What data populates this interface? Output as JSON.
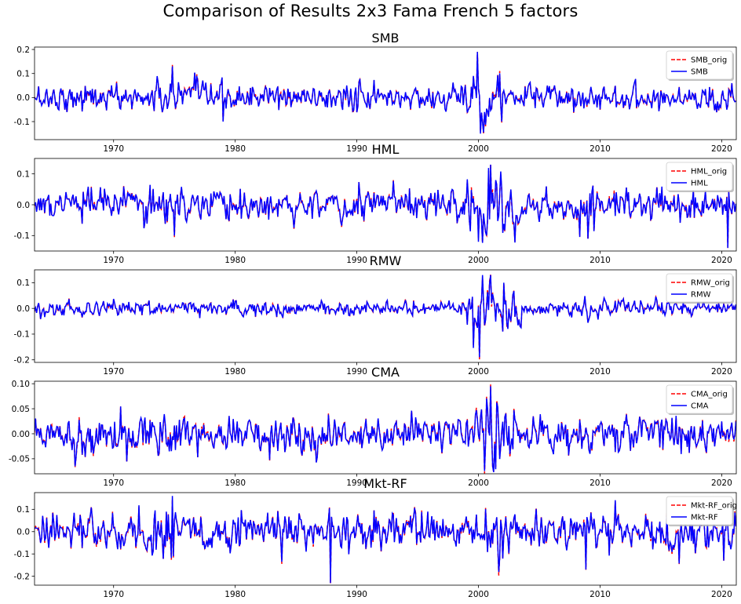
{
  "figure": {
    "title": "Comparison of Results 2x3 Fama French 5 factors",
    "colors": {
      "orig": "#ff0000",
      "replicated": "#0000ff"
    }
  },
  "chart_data": [
    {
      "type": "line",
      "title": "SMB",
      "xlabel": "",
      "ylabel": "",
      "xlim": [
        1963.5,
        2021.2
      ],
      "ylim": [
        -0.175,
        0.21
      ],
      "yticks": [
        "-0.1",
        "0.0",
        "0.1",
        "0.2"
      ],
      "ytick_values": [
        -0.1,
        0.0,
        0.1,
        0.2
      ],
      "xticks": [
        "1970",
        "1980",
        "1990",
        "2000",
        "2010",
        "2020"
      ],
      "xtick_values": [
        1970,
        1980,
        1990,
        2000,
        2010,
        2020
      ],
      "legend_position": "top-right",
      "grid": false,
      "series": [
        {
          "name": "SMB_orig",
          "style": "dashed",
          "color": "#ff0000"
        },
        {
          "name": "SMB",
          "style": "solid",
          "color": "#0000ff"
        }
      ],
      "approx_points": [
        [
          1963.5,
          0.0
        ],
        [
          1967,
          0.02
        ],
        [
          1974.8,
          0.13
        ],
        [
          1979,
          -0.1
        ],
        [
          1999.9,
          0.19
        ],
        [
          2000.2,
          -0.15
        ],
        [
          2020.8,
          0.06
        ]
      ]
    },
    {
      "type": "line",
      "title": "HML",
      "xlabel": "",
      "ylabel": "",
      "xlim": [
        1963.5,
        2021.2
      ],
      "ylim": [
        -0.15,
        0.15
      ],
      "yticks": [
        "-0.1",
        "0.0",
        "0.1"
      ],
      "ytick_values": [
        -0.1,
        0.0,
        0.1
      ],
      "xticks": [
        "1970",
        "1980",
        "1990",
        "2000",
        "2010",
        "2020"
      ],
      "xtick_values": [
        1970,
        1980,
        1990,
        2000,
        2010,
        2020
      ],
      "legend_position": "top-right",
      "grid": false,
      "series": [
        {
          "name": "HML_orig",
          "style": "dashed",
          "color": "#ff0000"
        },
        {
          "name": "HML",
          "style": "solid",
          "color": "#0000ff"
        }
      ],
      "approx_points": [
        [
          1975,
          -0.1
        ],
        [
          2000,
          -0.12
        ],
        [
          2001,
          0.13
        ],
        [
          2009,
          -0.11
        ],
        [
          2020.5,
          -0.14
        ]
      ]
    },
    {
      "type": "line",
      "title": "RMW",
      "xlabel": "",
      "ylabel": "",
      "xlim": [
        1963.5,
        2021.2
      ],
      "ylim": [
        -0.21,
        0.15
      ],
      "yticks": [
        "-0.2",
        "-0.1",
        "0.0",
        "0.1"
      ],
      "ytick_values": [
        -0.2,
        -0.1,
        0.0,
        0.1
      ],
      "xticks": [
        "1970",
        "1980",
        "1990",
        "2000",
        "2010",
        "2020"
      ],
      "xtick_values": [
        1970,
        1980,
        1990,
        2000,
        2010,
        2020
      ],
      "legend_position": "top-right",
      "grid": false,
      "series": [
        {
          "name": "RMW_orig",
          "style": "dashed",
          "color": "#ff0000"
        },
        {
          "name": "RMW",
          "style": "solid",
          "color": "#0000ff"
        }
      ],
      "approx_points": [
        [
          2000.1,
          -0.19
        ],
        [
          2000.3,
          0.13
        ],
        [
          2001,
          0.13
        ],
        [
          2002,
          -0.09
        ]
      ]
    },
    {
      "type": "line",
      "title": "CMA",
      "xlabel": "",
      "ylabel": "",
      "xlim": [
        1963.5,
        2021.2
      ],
      "ylim": [
        -0.08,
        0.105
      ],
      "yticks": [
        "-0.05",
        "0.00",
        "0.05",
        "0.10"
      ],
      "ytick_values": [
        -0.05,
        0.0,
        0.05,
        0.1
      ],
      "xticks": [
        "1970",
        "1980",
        "1990",
        "2000",
        "2010",
        "2020"
      ],
      "xtick_values": [
        1970,
        1980,
        1990,
        2000,
        2010,
        2020
      ],
      "legend_position": "top-right",
      "grid": false,
      "series": [
        {
          "name": "CMA_orig",
          "style": "dashed",
          "color": "#ff0000"
        },
        {
          "name": "CMA",
          "style": "solid",
          "color": "#0000ff"
        }
      ],
      "approx_points": [
        [
          1966.8,
          -0.065
        ],
        [
          2001,
          0.095
        ],
        [
          2001.2,
          -0.065
        ]
      ]
    },
    {
      "type": "line",
      "title": "Mkt-RF",
      "xlabel": "",
      "ylabel": "",
      "xlim": [
        1963.5,
        2021.2
      ],
      "ylim": [
        -0.24,
        0.175
      ],
      "yticks": [
        "-0.2",
        "-0.1",
        "0.0",
        "0.1"
      ],
      "ytick_values": [
        -0.2,
        -0.1,
        0.0,
        0.1
      ],
      "xticks": [
        "1970",
        "1980",
        "1990",
        "2000",
        "2010",
        "2020"
      ],
      "xtick_values": [
        1970,
        1980,
        1990,
        2000,
        2010,
        2020
      ],
      "legend_position": "top-right",
      "grid": false,
      "series": [
        {
          "name": "Mkt-RF_orig",
          "style": "dashed",
          "color": "#ff0000"
        },
        {
          "name": "Mkt-RF",
          "style": "solid",
          "color": "#0000ff"
        }
      ],
      "approx_points": [
        [
          1974.8,
          0.16
        ],
        [
          1987.8,
          -0.23
        ],
        [
          2008.8,
          -0.17
        ],
        [
          2020.2,
          -0.13
        ],
        [
          2020.4,
          0.13
        ]
      ]
    }
  ]
}
